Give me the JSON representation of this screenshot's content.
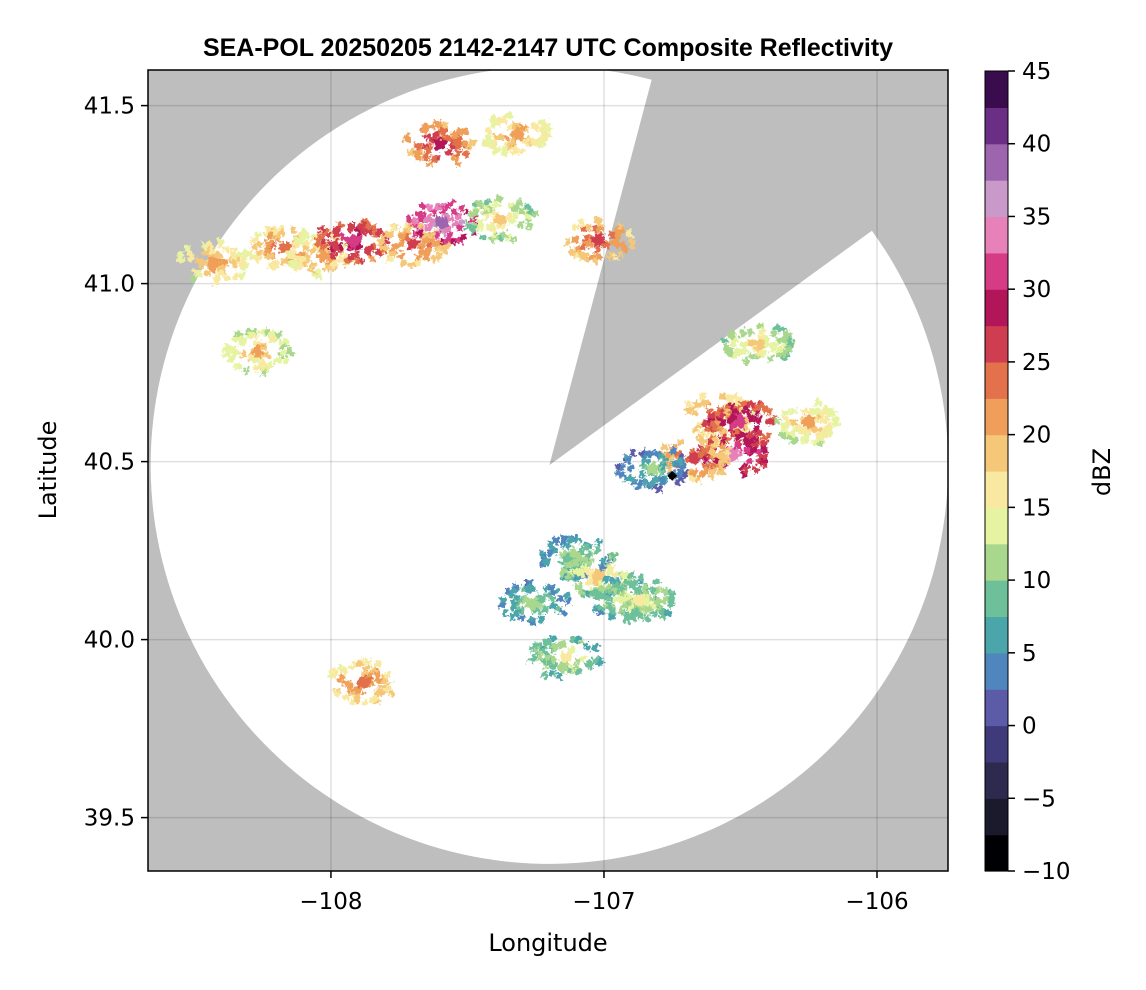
{
  "chart_data": {
    "type": "heatmap",
    "title": "SEA-POL 20250205 2142-2147 UTC Composite Reflectivity",
    "xlabel": "Longitude",
    "ylabel": "Latitude",
    "xlim": [
      -108.67,
      -105.74
    ],
    "ylim": [
      39.35,
      41.6
    ],
    "x_ticks": [
      -108,
      -107,
      -106
    ],
    "x_tick_labels": [
      "−108",
      "−107",
      "−106"
    ],
    "y_ticks": [
      39.5,
      40.0,
      40.5,
      41.0,
      41.5
    ],
    "y_tick_labels": [
      "39.5",
      "40.0",
      "40.5",
      "41.0",
      "41.5"
    ],
    "grid": true,
    "colorbar": {
      "label": "dBZ",
      "range": [
        -10,
        45
      ],
      "ticks": [
        -10,
        -5,
        0,
        5,
        10,
        15,
        20,
        25,
        30,
        35,
        40,
        45
      ],
      "tick_labels": [
        "−10",
        "−5",
        "0",
        "5",
        "10",
        "15",
        "20",
        "25",
        "30",
        "35",
        "40",
        "45"
      ],
      "colors": [
        "#000004",
        "#1b1a2c",
        "#2e2a4f",
        "#3f3b7a",
        "#5b5ba8",
        "#4f86be",
        "#4ba6ac",
        "#6ec09a",
        "#a8d78d",
        "#e6f3a0",
        "#f9e9a0",
        "#f4c878",
        "#ef9f59",
        "#e2714c",
        "#cf3d50",
        "#b21658",
        "#d63b86",
        "#e681b9",
        "#c899c9",
        "#9c65ae",
        "#6a2f84",
        "#3a0b4d"
      ]
    },
    "background_color": "#bebebe",
    "radar_coverage": {
      "center": [
        -107.2,
        40.49
      ],
      "radius_deg_lat": 1.12,
      "blocked_sector_edges": [
        [
          -106.84,
          41.53
        ],
        [
          -106.07,
          41.12
        ]
      ]
    },
    "radar_site_marker": {
      "lon": -106.75,
      "lat": 40.46
    },
    "echoes": [
      {
        "lon": -108.17,
        "lat": 41.1,
        "dbz": 24
      },
      {
        "lon": -108.03,
        "lat": 41.08,
        "dbz": 22
      },
      {
        "lon": -107.92,
        "lat": 41.12,
        "dbz": 32
      },
      {
        "lon": -107.7,
        "lat": 41.11,
        "dbz": 25
      },
      {
        "lon": -107.59,
        "lat": 41.17,
        "dbz": 38
      },
      {
        "lon": -107.38,
        "lat": 41.18,
        "dbz": 18
      },
      {
        "lon": -107.02,
        "lat": 41.12,
        "dbz": 26
      },
      {
        "lon": -107.6,
        "lat": 41.39,
        "dbz": 28
      },
      {
        "lon": -107.32,
        "lat": 41.42,
        "dbz": 22
      },
      {
        "lon": -108.43,
        "lat": 41.06,
        "dbz": 22
      },
      {
        "lon": -108.27,
        "lat": 40.81,
        "dbz": 20
      },
      {
        "lon": -106.43,
        "lat": 40.83,
        "dbz": 18
      },
      {
        "lon": -106.58,
        "lat": 40.63,
        "dbz": 24
      },
      {
        "lon": -106.5,
        "lat": 40.61,
        "dbz": 32
      },
      {
        "lon": -106.52,
        "lat": 40.52,
        "dbz": 34
      },
      {
        "lon": -106.67,
        "lat": 40.51,
        "dbz": 26
      },
      {
        "lon": -106.82,
        "lat": 40.48,
        "dbz": 10
      },
      {
        "lon": -106.25,
        "lat": 40.61,
        "dbz": 20
      },
      {
        "lon": -107.1,
        "lat": 40.23,
        "dbz": 12
      },
      {
        "lon": -107.02,
        "lat": 40.18,
        "dbz": 18
      },
      {
        "lon": -106.93,
        "lat": 40.12,
        "dbz": 14
      },
      {
        "lon": -106.87,
        "lat": 40.11,
        "dbz": 16
      },
      {
        "lon": -107.14,
        "lat": 39.95,
        "dbz": 15
      },
      {
        "lon": -107.26,
        "lat": 40.1,
        "dbz": 12
      },
      {
        "lon": -107.88,
        "lat": 39.88,
        "dbz": 24
      }
    ]
  }
}
